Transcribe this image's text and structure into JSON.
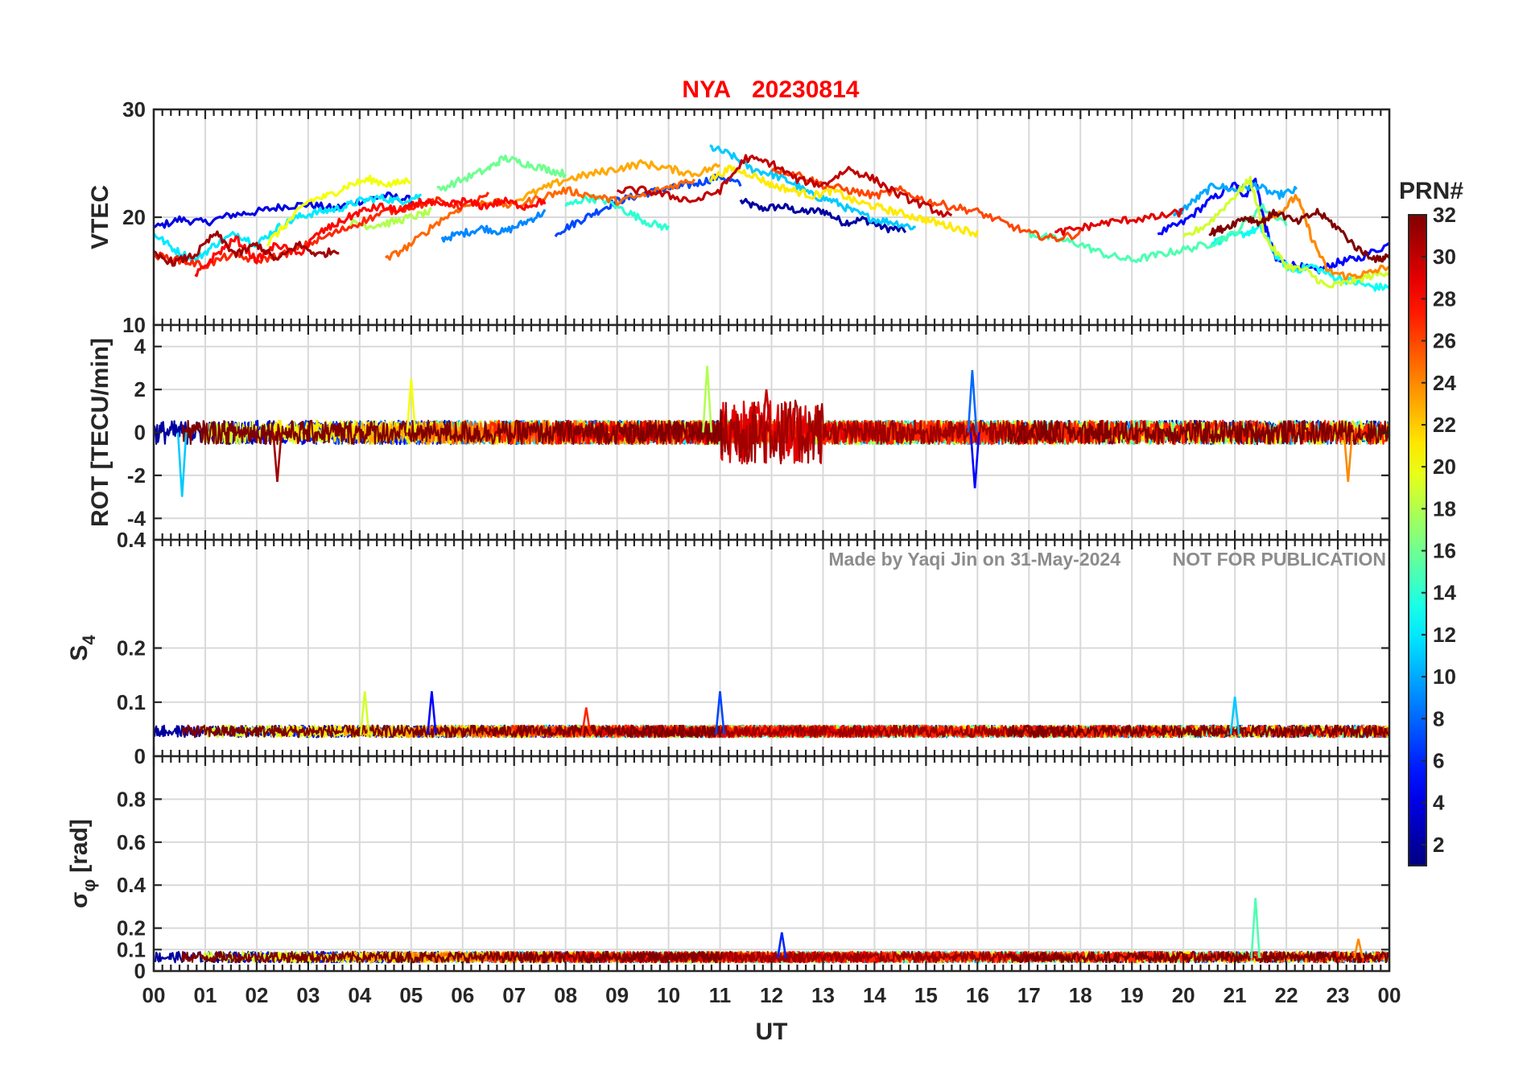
{
  "chart_data": {
    "type": "line",
    "title": {
      "station": "NYA",
      "date": "20230814"
    },
    "xlabel": "UT",
    "x_ticks": [
      "00",
      "01",
      "02",
      "03",
      "04",
      "05",
      "06",
      "07",
      "08",
      "09",
      "10",
      "11",
      "12",
      "13",
      "14",
      "15",
      "16",
      "17",
      "18",
      "19",
      "20",
      "21",
      "22",
      "23",
      "00"
    ],
    "xlim": [
      0,
      24
    ],
    "grid": true,
    "panels": [
      {
        "ylabel": "VTEC",
        "ylim": [
          10,
          30
        ],
        "yticks": [
          10,
          20,
          30
        ]
      },
      {
        "ylabel": "ROT [TECU/min]",
        "ylim": [
          -5,
          5
        ],
        "yticks": [
          -4,
          -2,
          0,
          2,
          4
        ]
      },
      {
        "ylabel_main": "S",
        "ylabel_sub": "4",
        "ylim": [
          0,
          0.4
        ],
        "yticks": [
          0,
          0.1,
          0.2,
          0.4
        ]
      },
      {
        "ylabel_main": "σ",
        "ylabel_sub": "φ",
        "ylabel_unit": "[rad]",
        "ylim": [
          0,
          1
        ],
        "yticks": [
          0,
          0.1,
          0.2,
          0.4,
          0.6,
          0.8
        ]
      }
    ],
    "colorbar": {
      "label": "PRN#",
      "range": [
        1,
        32
      ],
      "ticks": [
        2,
        4,
        6,
        8,
        10,
        12,
        14,
        16,
        18,
        20,
        22,
        24,
        26,
        28,
        30,
        32
      ],
      "colormap": "jet"
    },
    "watermark": {
      "made_by": "Made by Yaqi Jin on 31-May-2024",
      "notice": "NOT FOR PUBLICATION"
    },
    "series_vtec": [
      {
        "prn": 2,
        "x": [
          11.4,
          11.8,
          12.2,
          12.6,
          13.0,
          13.4,
          13.8,
          14.2,
          14.6
        ],
        "y": [
          21.5,
          20.8,
          21.0,
          20.5,
          20.6,
          19.5,
          19.8,
          19.0,
          18.8
        ]
      },
      {
        "prn": 4,
        "x": [
          0.0,
          0.5,
          1.0,
          1.5,
          2.0,
          2.5,
          3.0,
          3.5,
          4.0,
          4.5,
          5.0
        ],
        "y": [
          19.0,
          19.8,
          19.5,
          20.2,
          20.5,
          21.0,
          21.2,
          20.8,
          21.5,
          22.0,
          21.6
        ]
      },
      {
        "prn": 5,
        "x": [
          19.5,
          20.0,
          20.5,
          21.0,
          21.2,
          21.4,
          21.6,
          21.8,
          22.2,
          22.6,
          23.0,
          23.4,
          24.0
        ],
        "y": [
          18.5,
          19.5,
          21.5,
          23.0,
          22.0,
          23.5,
          19.0,
          16.0,
          15.5,
          15.0,
          15.8,
          16.2,
          17.5
        ]
      },
      {
        "prn": 7,
        "x": [
          7.8,
          8.2,
          8.6,
          9.0,
          9.4,
          9.8,
          10.2,
          10.6,
          11.0,
          11.4
        ],
        "y": [
          18.5,
          19.5,
          20.5,
          21.5,
          22.0,
          22.5,
          22.8,
          23.2,
          23.8,
          23.0
        ]
      },
      {
        "prn": 9,
        "x": [
          5.6,
          6.0,
          6.4,
          6.8,
          7.2,
          7.6
        ],
        "y": [
          18.0,
          18.5,
          19.0,
          18.6,
          19.5,
          20.5
        ]
      },
      {
        "prn": 10,
        "x": [
          19.8,
          20.2,
          20.6,
          21.0,
          21.4,
          21.8,
          22.2
        ],
        "y": [
          20.0,
          21.5,
          23.0,
          22.5,
          23.0,
          22.0,
          22.5
        ]
      },
      {
        "prn": 11,
        "x": [
          10.8,
          11.2,
          11.6,
          12.0,
          12.4,
          12.8,
          13.2,
          13.6,
          14.0,
          14.4,
          14.8
        ],
        "y": [
          26.5,
          25.8,
          24.5,
          24.0,
          23.2,
          22.0,
          21.5,
          20.5,
          19.8,
          19.5,
          19.0
        ]
      },
      {
        "prn": 12,
        "x": [
          0.0,
          0.4,
          0.8,
          1.2,
          1.6,
          2.0,
          2.4,
          2.8,
          3.2,
          3.6,
          4.0,
          4.4,
          4.8,
          5.2
        ],
        "y": [
          18.5,
          17.0,
          16.0,
          17.5,
          18.5,
          17.5,
          19.0,
          20.0,
          20.5,
          20.8,
          21.5,
          21.8,
          21.5,
          22.0
        ]
      },
      {
        "prn": 13,
        "x": [
          20.5,
          20.8,
          21.2,
          21.5,
          21.8,
          22.1,
          22.5,
          22.9,
          23.3,
          23.7,
          24.0
        ],
        "y": [
          17.5,
          18.0,
          18.5,
          19.0,
          16.5,
          15.0,
          15.5,
          14.5,
          14.0,
          13.5,
          13.5
        ]
      },
      {
        "prn": 14,
        "x": [
          8.0,
          8.4,
          8.8,
          9.2,
          9.6,
          10.0
        ],
        "y": [
          21.0,
          21.8,
          21.5,
          20.5,
          19.5,
          19.0
        ]
      },
      {
        "prn": 15,
        "x": [
          17.0,
          17.5,
          18.0,
          18.5,
          19.0,
          19.5,
          20.0,
          20.5,
          21.0,
          21.5,
          22.0
        ],
        "y": [
          18.5,
          18.0,
          17.5,
          16.5,
          16.0,
          16.5,
          17.0,
          17.5,
          18.5,
          21.0,
          19.5
        ]
      },
      {
        "prn": 16,
        "x": [
          5.5,
          6.0,
          6.5,
          6.8,
          7.2,
          7.6,
          8.0
        ],
        "y": [
          22.5,
          23.5,
          24.5,
          25.5,
          25.0,
          24.5,
          24.0
        ]
      },
      {
        "prn": 18,
        "x": [
          3.8,
          4.2,
          4.6,
          5.0,
          5.4
        ],
        "y": [
          19.5,
          19.2,
          19.5,
          20.0,
          20.5
        ]
      },
      {
        "prn": 19,
        "x": [
          20.0,
          20.5,
          21.0,
          21.3,
          21.6,
          22.0,
          22.4,
          22.8,
          23.2,
          23.6,
          24.0
        ],
        "y": [
          18.0,
          19.5,
          22.0,
          23.5,
          18.0,
          15.5,
          15.0,
          13.5,
          14.0,
          14.5,
          15.0
        ]
      },
      {
        "prn": 20,
        "x": [
          2.2,
          2.6,
          3.0,
          3.4,
          3.8,
          4.2,
          4.6,
          5.0
        ],
        "y": [
          17.5,
          19.5,
          21.5,
          22.0,
          23.0,
          23.5,
          23.0,
          23.5
        ]
      },
      {
        "prn": 21,
        "x": [
          10.8,
          11.2,
          11.6,
          12.0,
          12.4,
          12.8,
          13.2,
          13.6,
          14.0,
          14.4,
          14.8,
          15.2,
          15.6,
          16.0
        ],
        "y": [
          23.5,
          24.5,
          24.0,
          23.0,
          22.5,
          22.0,
          22.5,
          21.5,
          21.0,
          20.5,
          20.0,
          19.5,
          19.0,
          18.5
        ]
      },
      {
        "prn": 23,
        "x": [
          7.0,
          7.5,
          8.0,
          8.5,
          9.0,
          9.5,
          10.0,
          10.5,
          11.0
        ],
        "y": [
          21.5,
          22.5,
          23.5,
          24.0,
          24.5,
          25.0,
          24.5,
          24.0,
          24.8
        ]
      },
      {
        "prn": 24,
        "x": [
          21.6,
          21.9,
          22.2,
          22.5,
          22.8,
          23.2,
          23.6,
          24.0
        ],
        "y": [
          20.0,
          20.5,
          22.0,
          18.0,
          15.0,
          14.5,
          14.8,
          15.5
        ]
      },
      {
        "prn": 25,
        "x": [
          4.5,
          5.0,
          5.5,
          6.0,
          6.5,
          7.0,
          7.5,
          8.0,
          8.5,
          9.0,
          9.5,
          10.0,
          10.5
        ],
        "y": [
          16.0,
          17.5,
          19.5,
          21.0,
          21.5,
          21.0,
          21.8,
          22.5,
          22.0,
          21.5,
          22.0,
          22.8,
          23.5
        ]
      },
      {
        "prn": 26,
        "x": [
          12.0,
          12.5,
          13.0,
          13.5,
          14.0,
          14.5,
          15.0,
          15.5,
          16.0,
          16.5,
          17.0,
          17.5,
          18.0
        ],
        "y": [
          24.5,
          24.0,
          23.0,
          22.5,
          22.0,
          22.5,
          21.5,
          21.0,
          20.5,
          19.5,
          18.5,
          18.0,
          18.5
        ]
      },
      {
        "prn": 27,
        "x": [
          0.0,
          0.5,
          1.0,
          1.5,
          2.0,
          2.5,
          3.0,
          3.5,
          4.0,
          4.5,
          5.0,
          5.5,
          6.0,
          6.5
        ],
        "y": [
          16.5,
          16.0,
          15.5,
          16.5,
          16.0,
          16.5,
          17.5,
          18.5,
          19.5,
          20.5,
          21.0,
          21.5,
          21.0,
          22.0
        ]
      },
      {
        "prn": 28,
        "x": [
          0.8,
          1.2,
          1.6,
          2.0,
          2.4,
          2.8,
          3.2,
          3.6,
          4.0,
          4.4,
          4.8,
          5.2,
          5.6,
          6.0,
          6.4,
          6.8,
          7.2,
          7.6
        ],
        "y": [
          14.5,
          16.5,
          18.0,
          16.0,
          17.5,
          16.5,
          18.5,
          19.5,
          20.5,
          21.0,
          20.5,
          21.5,
          21.0,
          21.5,
          21.0,
          21.5,
          21.0,
          21.5
        ]
      },
      {
        "prn": 29,
        "x": [
          17.5,
          18.0,
          18.5,
          19.0,
          19.5,
          20.0
        ],
        "y": [
          18.5,
          19.0,
          19.5,
          19.8,
          20.0,
          20.5
        ]
      },
      {
        "prn": 30,
        "x": [
          9.0,
          9.5,
          10.0,
          10.5,
          11.0,
          11.5,
          12.0,
          12.5,
          13.0,
          13.5,
          14.0,
          14.5,
          15.0,
          15.5
        ],
        "y": [
          22.5,
          22.5,
          22.0,
          21.5,
          22.5,
          25.5,
          25.0,
          23.5,
          23.0,
          24.5,
          23.5,
          22.0,
          21.0,
          20.0
        ]
      },
      {
        "prn": 31,
        "x": [
          0.0,
          0.4,
          0.8,
          1.2,
          1.6,
          2.0,
          2.4,
          2.8,
          3.2,
          3.6
        ],
        "y": [
          16.5,
          15.8,
          16.5,
          18.5,
          16.5,
          17.5,
          16.0,
          17.5,
          16.5,
          17.0
        ]
      },
      {
        "prn": 32,
        "x": [
          20.5,
          20.8,
          21.2,
          21.5,
          21.8,
          22.2,
          22.6,
          23.0,
          23.4,
          23.8,
          24.0
        ],
        "y": [
          18.5,
          19.0,
          20.0,
          19.5,
          20.5,
          19.5,
          20.5,
          19.0,
          17.0,
          16.0,
          16.5
        ]
      }
    ],
    "rot_range_typical": [
      -1,
      1
    ],
    "s4_range_typical": [
      0.03,
      0.06
    ],
    "sigma_phi_range_typical": [
      0.03,
      0.1
    ],
    "peaks": {
      "rot": [
        {
          "prn": 18,
          "x": 10.75,
          "y": 3.1
        },
        {
          "prn": 11,
          "x": 0.55,
          "y": -3.0
        },
        {
          "prn": 8,
          "x": 15.9,
          "y": 2.9
        },
        {
          "prn": 5,
          "x": 15.95,
          "y": -2.6
        },
        {
          "prn": 24,
          "x": 23.2,
          "y": -2.3
        },
        {
          "prn": 31,
          "x": 2.4,
          "y": -2.3
        },
        {
          "prn": 30,
          "x": 11.9,
          "y": 2.0
        },
        {
          "prn": 20,
          "x": 5.0,
          "y": 2.5
        }
      ],
      "s4": [
        {
          "prn": 5,
          "x": 5.4,
          "y": 0.12
        },
        {
          "prn": 7,
          "x": 11.0,
          "y": 0.12
        },
        {
          "prn": 19,
          "x": 4.1,
          "y": 0.12
        },
        {
          "prn": 27,
          "x": 8.4,
          "y": 0.09
        },
        {
          "prn": 11,
          "x": 21.0,
          "y": 0.11
        }
      ],
      "sigma_phi": [
        {
          "prn": 15,
          "x": 21.4,
          "y": 0.34
        },
        {
          "prn": 6,
          "x": 12.2,
          "y": 0.18
        },
        {
          "prn": 24,
          "x": 23.4,
          "y": 0.15
        }
      ]
    }
  }
}
